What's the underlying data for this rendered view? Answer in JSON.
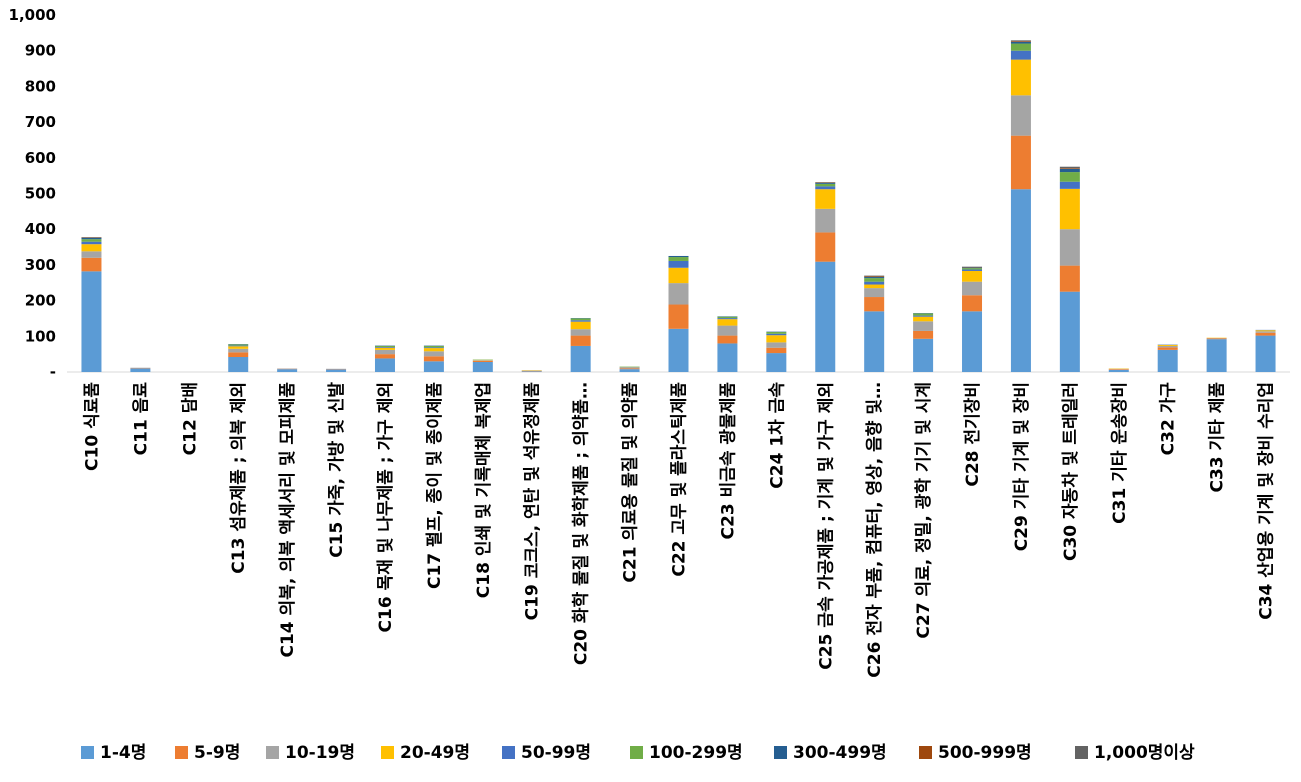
{
  "chart_data": {
    "type": "bar",
    "stacked": true,
    "title": "",
    "xlabel": "",
    "ylabel": "",
    "ylim": [
      0,
      1000
    ],
    "yticks": [
      0,
      100,
      200,
      300,
      400,
      500,
      600,
      700,
      800,
      900,
      1000
    ],
    "ytick_labels": [
      "-",
      "100",
      "200",
      "300",
      "400",
      "500",
      "600",
      "700",
      "800",
      "900",
      "1,000"
    ],
    "grid": false,
    "legend_position": "bottom",
    "categories": [
      "C10 식료품",
      "C11 음료",
      "C12 담배",
      "C13 섬유제품 ; 의복 제외",
      "C14 의복, 의복 액세서리 및 모피제품",
      "C15 가죽, 가방 및 신발",
      "C16 목재 및 나무제품 ; 가구 제외",
      "C17 펄프, 종이 및 종이제품",
      "C18 인쇄 및 기록매체 복제업",
      "C19 코크스, 연탄 및 석유정제품",
      "C20 화학 물질 및 화학제품 ; 의약품…",
      "C21 의료용 물질 및 의약품",
      "C22 고무 및 플라스틱제품",
      "C23 비금속 광물제품",
      "C24 1차 금속",
      "C25 금속 가공제품 ; 기계 및 가구 제외",
      "C26 전자 부품, 컴퓨터, 영상, 음향 및…",
      "C27 의료, 정밀, 광학 기기 및 시계",
      "C28 전기장비",
      "C29 기타 기계 및 장비",
      "C30 자동차 및 트레일러",
      "C31 기타 운송장비",
      "C32 가구",
      "C33 기타 제품",
      "C34 산업용 기계 및 장비 수리업"
    ],
    "series": [
      {
        "name": "1-4명",
        "color": "#5B9BD5",
        "values": [
          282,
          10,
          0,
          42,
          8,
          7,
          38,
          30,
          28,
          2,
          73,
          8,
          121,
          80,
          53,
          309,
          170,
          93,
          170,
          512,
          225,
          6,
          62,
          92,
          102
        ]
      },
      {
        "name": "5-9명",
        "color": "#ED7D31",
        "values": [
          38,
          1,
          0,
          13,
          1,
          1,
          12,
          14,
          3,
          1,
          29,
          2,
          68,
          22,
          15,
          82,
          40,
          22,
          45,
          150,
          73,
          2,
          7,
          2,
          8
        ]
      },
      {
        "name": "10-19명",
        "color": "#A5A5A5",
        "values": [
          18,
          1,
          0,
          10,
          1,
          1,
          12,
          14,
          2,
          1,
          18,
          2,
          60,
          28,
          15,
          66,
          25,
          27,
          38,
          113,
          102,
          1,
          4,
          1,
          4
        ]
      },
      {
        "name": "20-49명",
        "color": "#FFC000",
        "values": [
          20,
          0,
          0,
          7,
          0,
          0,
          6,
          9,
          1,
          1,
          21,
          1,
          43,
          18,
          20,
          55,
          10,
          13,
          30,
          100,
          113,
          1,
          3,
          1,
          3
        ]
      },
      {
        "name": "50-99명",
        "color": "#4472C4",
        "values": [
          7,
          0,
          0,
          2,
          0,
          0,
          2,
          2,
          0,
          0,
          4,
          1,
          19,
          3,
          4,
          8,
          8,
          3,
          4,
          25,
          20,
          0,
          1,
          0,
          1
        ]
      },
      {
        "name": "100-299명",
        "color": "#70AD47",
        "values": [
          7,
          0,
          0,
          3,
          0,
          0,
          3,
          4,
          1,
          0,
          5,
          1,
          11,
          4,
          5,
          7,
          10,
          6,
          4,
          20,
          27,
          0,
          0,
          0,
          0
        ]
      },
      {
        "name": "300-499명",
        "color": "#255E91",
        "values": [
          4,
          0,
          0,
          1,
          0,
          0,
          1,
          1,
          0,
          0,
          1,
          0,
          3,
          1,
          1,
          3,
          3,
          1,
          2,
          5,
          9,
          0,
          0,
          0,
          0
        ]
      },
      {
        "name": "500-999명",
        "color": "#9E480E",
        "values": [
          1,
          0,
          0,
          0,
          0,
          0,
          0,
          0,
          0,
          0,
          0,
          0,
          0,
          0,
          0,
          1,
          2,
          0,
          1,
          2,
          2,
          0,
          0,
          0,
          0
        ]
      },
      {
        "name": "1,000명이상",
        "color": "#636363",
        "values": [
          1,
          0,
          0,
          0,
          0,
          0,
          0,
          0,
          0,
          0,
          0,
          0,
          0,
          0,
          0,
          1,
          2,
          0,
          1,
          2,
          4,
          0,
          0,
          0,
          0
        ]
      }
    ]
  }
}
